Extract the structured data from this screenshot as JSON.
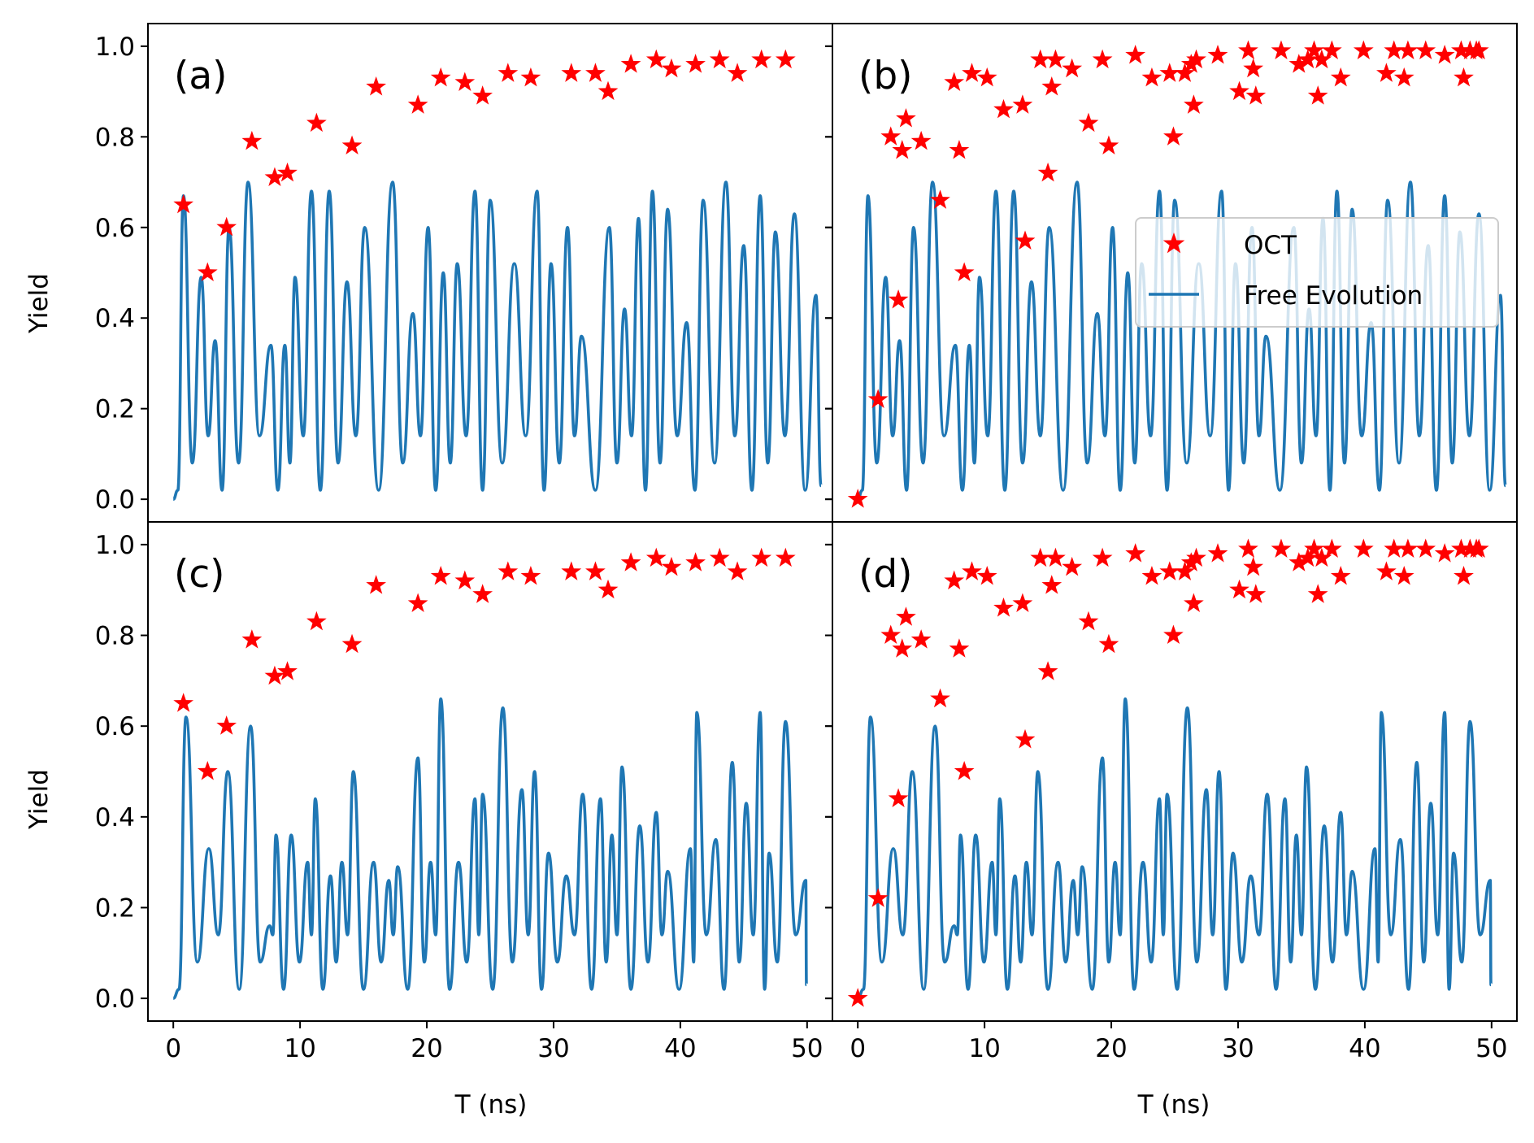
{
  "shared": {
    "xlabel": "T (ns)",
    "ylabel": "Yield",
    "xlim": [
      -2,
      52
    ],
    "ylim": [
      -0.05,
      1.05
    ],
    "xticks": [
      0,
      10,
      20,
      30,
      40,
      50
    ],
    "yticks": [
      "0.0",
      "0.2",
      "0.4",
      "0.6",
      "0.8",
      "1.0"
    ],
    "ytick_values": [
      0.0,
      0.2,
      0.4,
      0.6,
      0.8,
      1.0
    ]
  },
  "legend": {
    "oct_label": "OCT",
    "free_label": "Free Evolution"
  },
  "colors": {
    "oct": "#ff0000",
    "free": "#1f77b4"
  },
  "chart_data": [
    {
      "panel": "(a)",
      "type": "line+scatter",
      "oct_points": [
        [
          0.8,
          0.65
        ],
        [
          2.7,
          0.5
        ],
        [
          4.2,
          0.6
        ],
        [
          6.2,
          0.79
        ],
        [
          8.0,
          0.71
        ],
        [
          9.0,
          0.72
        ],
        [
          11.3,
          0.83
        ],
        [
          14.1,
          0.78
        ],
        [
          16.0,
          0.91
        ],
        [
          19.3,
          0.87
        ],
        [
          21.1,
          0.93
        ],
        [
          23.0,
          0.92
        ],
        [
          24.4,
          0.89
        ],
        [
          26.4,
          0.94
        ],
        [
          28.2,
          0.93
        ],
        [
          31.4,
          0.94
        ],
        [
          33.3,
          0.94
        ],
        [
          34.3,
          0.9
        ],
        [
          36.1,
          0.96
        ],
        [
          38.1,
          0.97
        ],
        [
          39.3,
          0.95
        ],
        [
          41.2,
          0.96
        ],
        [
          43.1,
          0.97
        ],
        [
          44.5,
          0.94
        ],
        [
          46.4,
          0.97
        ],
        [
          48.3,
          0.97
        ]
      ],
      "free_evolution_peaks": [
        [
          0.8,
          0.67
        ],
        [
          2.2,
          0.49
        ],
        [
          3.3,
          0.35
        ],
        [
          4.4,
          0.6
        ],
        [
          5.9,
          0.7
        ],
        [
          7.7,
          0.34
        ],
        [
          8.8,
          0.34
        ],
        [
          9.6,
          0.49
        ],
        [
          10.9,
          0.68
        ],
        [
          12.3,
          0.68
        ],
        [
          13.7,
          0.48
        ],
        [
          15.1,
          0.6
        ],
        [
          17.3,
          0.7
        ],
        [
          18.9,
          0.41
        ],
        [
          20.1,
          0.6
        ],
        [
          21.3,
          0.5
        ],
        [
          22.4,
          0.52
        ],
        [
          23.8,
          0.68
        ],
        [
          25.0,
          0.66
        ],
        [
          26.9,
          0.52
        ],
        [
          28.7,
          0.68
        ],
        [
          29.8,
          0.52
        ],
        [
          31.1,
          0.6
        ],
        [
          32.2,
          0.36
        ],
        [
          34.4,
          0.6
        ],
        [
          35.6,
          0.42
        ],
        [
          36.7,
          0.62
        ],
        [
          37.8,
          0.68
        ],
        [
          39.0,
          0.64
        ],
        [
          40.5,
          0.39
        ],
        [
          41.8,
          0.66
        ],
        [
          43.6,
          0.7
        ],
        [
          45.0,
          0.56
        ],
        [
          46.3,
          0.67
        ],
        [
          47.5,
          0.59
        ],
        [
          49.0,
          0.63
        ],
        [
          50.7,
          0.45
        ]
      ]
    },
    {
      "panel": "(b)",
      "type": "line+scatter",
      "oct_points": [
        [
          0.0,
          0.0
        ],
        [
          1.6,
          0.22
        ],
        [
          2.6,
          0.8
        ],
        [
          3.2,
          0.44
        ],
        [
          3.5,
          0.77
        ],
        [
          3.8,
          0.84
        ],
        [
          5.0,
          0.79
        ],
        [
          6.5,
          0.66
        ],
        [
          7.6,
          0.92
        ],
        [
          8.0,
          0.77
        ],
        [
          8.4,
          0.5
        ],
        [
          9.0,
          0.94
        ],
        [
          10.2,
          0.93
        ],
        [
          11.5,
          0.86
        ],
        [
          13.0,
          0.87
        ],
        [
          13.2,
          0.57
        ],
        [
          14.4,
          0.97
        ],
        [
          15.0,
          0.72
        ],
        [
          15.3,
          0.91
        ],
        [
          15.6,
          0.97
        ],
        [
          16.9,
          0.95
        ],
        [
          18.2,
          0.83
        ],
        [
          19.3,
          0.97
        ],
        [
          19.8,
          0.78
        ],
        [
          21.9,
          0.98
        ],
        [
          23.2,
          0.93
        ],
        [
          24.6,
          0.94
        ],
        [
          24.9,
          0.8
        ],
        [
          25.8,
          0.94
        ],
        [
          26.3,
          0.96
        ],
        [
          26.5,
          0.87
        ],
        [
          26.7,
          0.97
        ],
        [
          28.4,
          0.98
        ],
        [
          30.1,
          0.9
        ],
        [
          30.8,
          0.99
        ],
        [
          31.2,
          0.95
        ],
        [
          31.4,
          0.89
        ],
        [
          33.4,
          0.99
        ],
        [
          34.8,
          0.96
        ],
        [
          35.5,
          0.97
        ],
        [
          36.0,
          0.99
        ],
        [
          36.3,
          0.89
        ],
        [
          36.6,
          0.97
        ],
        [
          37.4,
          0.99
        ],
        [
          38.1,
          0.93
        ],
        [
          39.9,
          0.99
        ],
        [
          41.7,
          0.94
        ],
        [
          42.3,
          0.99
        ],
        [
          43.1,
          0.93
        ],
        [
          43.4,
          0.99
        ],
        [
          44.8,
          0.99
        ],
        [
          46.3,
          0.98
        ],
        [
          47.6,
          0.99
        ],
        [
          47.8,
          0.93
        ],
        [
          48.3,
          0.99
        ],
        [
          48.8,
          0.99
        ],
        [
          49.0,
          0.99
        ]
      ],
      "free_evolution_peaks": [
        [
          0.8,
          0.67
        ],
        [
          2.2,
          0.49
        ],
        [
          3.3,
          0.35
        ],
        [
          4.4,
          0.6
        ],
        [
          5.9,
          0.7
        ],
        [
          7.7,
          0.34
        ],
        [
          8.8,
          0.34
        ],
        [
          9.6,
          0.49
        ],
        [
          10.9,
          0.68
        ],
        [
          12.3,
          0.68
        ],
        [
          13.7,
          0.48
        ],
        [
          15.1,
          0.6
        ],
        [
          17.3,
          0.7
        ],
        [
          18.9,
          0.41
        ],
        [
          20.1,
          0.6
        ],
        [
          21.3,
          0.5
        ],
        [
          22.4,
          0.52
        ],
        [
          23.8,
          0.68
        ],
        [
          25.0,
          0.66
        ],
        [
          26.9,
          0.52
        ],
        [
          28.7,
          0.68
        ],
        [
          29.8,
          0.52
        ],
        [
          31.1,
          0.6
        ],
        [
          32.2,
          0.36
        ],
        [
          34.4,
          0.6
        ],
        [
          35.6,
          0.42
        ],
        [
          36.7,
          0.62
        ],
        [
          37.8,
          0.68
        ],
        [
          39.0,
          0.64
        ],
        [
          40.5,
          0.39
        ],
        [
          41.8,
          0.66
        ],
        [
          43.6,
          0.7
        ],
        [
          45.0,
          0.56
        ],
        [
          46.3,
          0.67
        ],
        [
          47.5,
          0.59
        ],
        [
          49.0,
          0.63
        ],
        [
          50.7,
          0.45
        ]
      ]
    },
    {
      "panel": "(c)",
      "type": "line+scatter",
      "oct_points": [
        [
          0.8,
          0.65
        ],
        [
          2.7,
          0.5
        ],
        [
          4.2,
          0.6
        ],
        [
          6.2,
          0.79
        ],
        [
          8.0,
          0.71
        ],
        [
          9.0,
          0.72
        ],
        [
          11.3,
          0.83
        ],
        [
          14.1,
          0.78
        ],
        [
          16.0,
          0.91
        ],
        [
          19.3,
          0.87
        ],
        [
          21.1,
          0.93
        ],
        [
          23.0,
          0.92
        ],
        [
          24.4,
          0.89
        ],
        [
          26.4,
          0.94
        ],
        [
          28.2,
          0.93
        ],
        [
          31.4,
          0.94
        ],
        [
          33.3,
          0.94
        ],
        [
          34.3,
          0.9
        ],
        [
          36.1,
          0.96
        ],
        [
          38.1,
          0.97
        ],
        [
          39.3,
          0.95
        ],
        [
          41.2,
          0.96
        ],
        [
          43.1,
          0.97
        ],
        [
          44.5,
          0.94
        ],
        [
          46.4,
          0.97
        ],
        [
          48.3,
          0.97
        ]
      ],
      "free_evolution_peaks": [
        [
          1.0,
          0.62
        ],
        [
          2.8,
          0.33
        ],
        [
          4.3,
          0.5
        ],
        [
          6.1,
          0.6
        ],
        [
          7.6,
          0.16
        ],
        [
          8.1,
          0.36
        ],
        [
          9.3,
          0.36
        ],
        [
          10.6,
          0.3
        ],
        [
          11.2,
          0.44
        ],
        [
          12.4,
          0.27
        ],
        [
          13.3,
          0.3
        ],
        [
          14.2,
          0.5
        ],
        [
          15.8,
          0.3
        ],
        [
          17.0,
          0.26
        ],
        [
          17.7,
          0.29
        ],
        [
          19.3,
          0.53
        ],
        [
          20.3,
          0.3
        ],
        [
          21.1,
          0.66
        ],
        [
          22.5,
          0.3
        ],
        [
          23.8,
          0.44
        ],
        [
          24.4,
          0.45
        ],
        [
          26.0,
          0.64
        ],
        [
          27.5,
          0.46
        ],
        [
          28.5,
          0.5
        ],
        [
          29.6,
          0.32
        ],
        [
          31.0,
          0.27
        ],
        [
          32.3,
          0.45
        ],
        [
          33.7,
          0.44
        ],
        [
          34.6,
          0.36
        ],
        [
          35.4,
          0.51
        ],
        [
          36.8,
          0.38
        ],
        [
          38.1,
          0.41
        ],
        [
          39.0,
          0.28
        ],
        [
          40.8,
          0.33
        ],
        [
          41.3,
          0.63
        ],
        [
          42.8,
          0.35
        ],
        [
          44.1,
          0.52
        ],
        [
          45.2,
          0.43
        ],
        [
          46.3,
          0.63
        ],
        [
          47.0,
          0.32
        ],
        [
          48.3,
          0.61
        ],
        [
          49.9,
          0.26
        ]
      ]
    },
    {
      "panel": "(d)",
      "type": "line+scatter",
      "oct_points": [
        [
          0.0,
          0.0
        ],
        [
          1.6,
          0.22
        ],
        [
          2.6,
          0.8
        ],
        [
          3.2,
          0.44
        ],
        [
          3.5,
          0.77
        ],
        [
          3.8,
          0.84
        ],
        [
          5.0,
          0.79
        ],
        [
          6.5,
          0.66
        ],
        [
          7.6,
          0.92
        ],
        [
          8.0,
          0.77
        ],
        [
          8.4,
          0.5
        ],
        [
          9.0,
          0.94
        ],
        [
          10.2,
          0.93
        ],
        [
          11.5,
          0.86
        ],
        [
          13.0,
          0.87
        ],
        [
          13.2,
          0.57
        ],
        [
          14.4,
          0.97
        ],
        [
          15.0,
          0.72
        ],
        [
          15.3,
          0.91
        ],
        [
          15.6,
          0.97
        ],
        [
          16.9,
          0.95
        ],
        [
          18.2,
          0.83
        ],
        [
          19.3,
          0.97
        ],
        [
          19.8,
          0.78
        ],
        [
          21.9,
          0.98
        ],
        [
          23.2,
          0.93
        ],
        [
          24.6,
          0.94
        ],
        [
          24.9,
          0.8
        ],
        [
          25.8,
          0.94
        ],
        [
          26.3,
          0.96
        ],
        [
          26.5,
          0.87
        ],
        [
          26.7,
          0.97
        ],
        [
          28.4,
          0.98
        ],
        [
          30.1,
          0.9
        ],
        [
          30.8,
          0.99
        ],
        [
          31.2,
          0.95
        ],
        [
          31.4,
          0.89
        ],
        [
          33.4,
          0.99
        ],
        [
          34.8,
          0.96
        ],
        [
          35.5,
          0.97
        ],
        [
          36.0,
          0.99
        ],
        [
          36.3,
          0.89
        ],
        [
          36.6,
          0.97
        ],
        [
          37.4,
          0.99
        ],
        [
          38.1,
          0.93
        ],
        [
          39.9,
          0.99
        ],
        [
          41.7,
          0.94
        ],
        [
          42.3,
          0.99
        ],
        [
          43.1,
          0.93
        ],
        [
          43.4,
          0.99
        ],
        [
          44.8,
          0.99
        ],
        [
          46.3,
          0.98
        ],
        [
          47.6,
          0.99
        ],
        [
          47.8,
          0.93
        ],
        [
          48.3,
          0.99
        ],
        [
          48.8,
          0.99
        ],
        [
          49.0,
          0.99
        ]
      ],
      "free_evolution_peaks": [
        [
          1.0,
          0.62
        ],
        [
          2.8,
          0.33
        ],
        [
          4.3,
          0.5
        ],
        [
          6.1,
          0.6
        ],
        [
          7.6,
          0.16
        ],
        [
          8.1,
          0.36
        ],
        [
          9.3,
          0.36
        ],
        [
          10.6,
          0.3
        ],
        [
          11.2,
          0.44
        ],
        [
          12.4,
          0.27
        ],
        [
          13.3,
          0.3
        ],
        [
          14.2,
          0.5
        ],
        [
          15.8,
          0.3
        ],
        [
          17.0,
          0.26
        ],
        [
          17.7,
          0.29
        ],
        [
          19.3,
          0.53
        ],
        [
          20.3,
          0.3
        ],
        [
          21.1,
          0.66
        ],
        [
          22.5,
          0.3
        ],
        [
          23.8,
          0.44
        ],
        [
          24.4,
          0.45
        ],
        [
          26.0,
          0.64
        ],
        [
          27.5,
          0.46
        ],
        [
          28.5,
          0.5
        ],
        [
          29.6,
          0.32
        ],
        [
          31.0,
          0.27
        ],
        [
          32.3,
          0.45
        ],
        [
          33.7,
          0.44
        ],
        [
          34.6,
          0.36
        ],
        [
          35.4,
          0.51
        ],
        [
          36.8,
          0.38
        ],
        [
          38.1,
          0.41
        ],
        [
          39.0,
          0.28
        ],
        [
          40.8,
          0.33
        ],
        [
          41.3,
          0.63
        ],
        [
          42.8,
          0.35
        ],
        [
          44.1,
          0.52
        ],
        [
          45.2,
          0.43
        ],
        [
          46.3,
          0.63
        ],
        [
          47.0,
          0.32
        ],
        [
          48.3,
          0.61
        ],
        [
          49.9,
          0.26
        ]
      ]
    }
  ]
}
